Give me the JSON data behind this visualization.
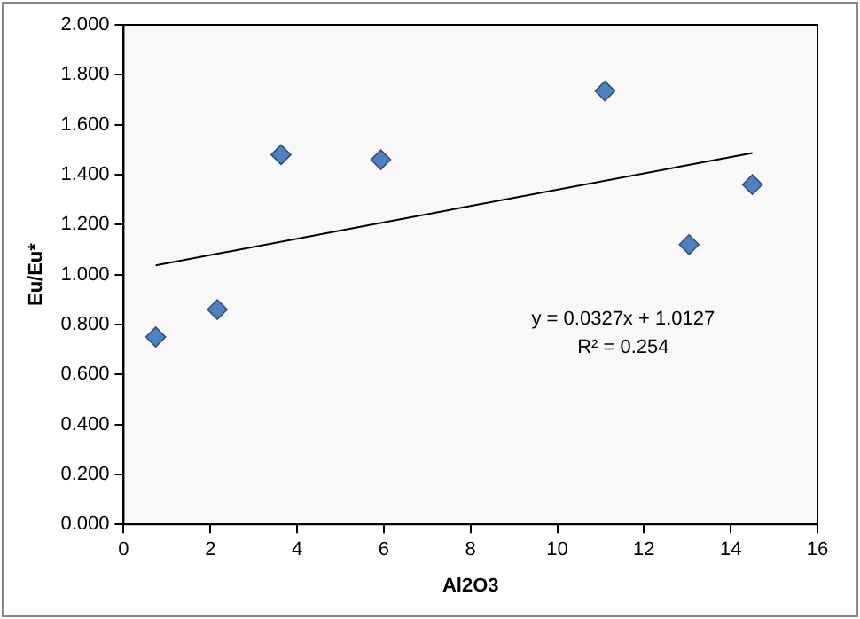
{
  "chart_data": {
    "type": "scatter",
    "xlabel": "Al2O3",
    "ylabel": "Eu/Eu*",
    "xlim": [
      0,
      16
    ],
    "xticks": [
      0,
      2,
      4,
      6,
      8,
      10,
      12,
      14,
      16
    ],
    "ylim": [
      0,
      2
    ],
    "yticks": [
      {
        "value": 0,
        "label": "0.000"
      },
      {
        "value": 0.2,
        "label": "0.200"
      },
      {
        "value": 0.4,
        "label": "0.400"
      },
      {
        "value": 0.6,
        "label": "0.600"
      },
      {
        "value": 0.8,
        "label": "0.800"
      },
      {
        "value": 1,
        "label": "1.000"
      },
      {
        "value": 1.2,
        "label": "1.200"
      },
      {
        "value": 1.4,
        "label": "1.400"
      },
      {
        "value": 1.6,
        "label": "1.600"
      },
      {
        "value": 1.8,
        "label": "1.800"
      },
      {
        "value": 2,
        "label": "2.000"
      }
    ],
    "grid": false,
    "legend": false,
    "marker": "diamond",
    "series": [
      {
        "color": "#4f81bd",
        "x": [
          0.74,
          2.16,
          3.63,
          5.93,
          11.1,
          13.04,
          14.5
        ],
        "values": [
          0.75,
          0.86,
          1.48,
          1.46,
          1.735,
          1.12,
          1.36
        ]
      },
      {
        "type": "line",
        "color": "#000000",
        "marker": "none",
        "line_style": "solid",
        "x": [
          0.74,
          14.5
        ],
        "values": [
          1.037,
          1.487
        ]
      }
    ],
    "annotations": [
      "y = 0.0327x + 1.0127",
      "R² = 0.254"
    ]
  }
}
